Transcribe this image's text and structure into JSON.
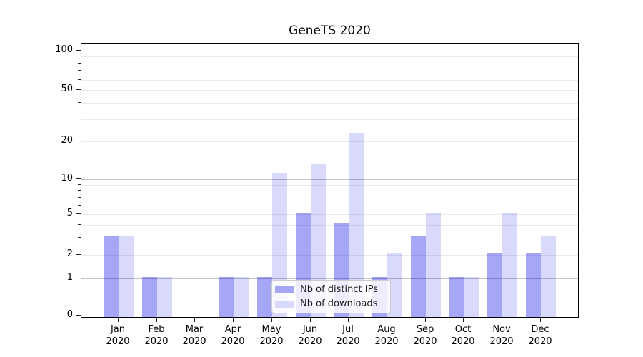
{
  "chart_data": {
    "type": "bar",
    "title": "GeneTS 2020",
    "categories": [
      "Jan",
      "Feb",
      "Mar",
      "Apr",
      "May",
      "Jun",
      "Jul",
      "Aug",
      "Sep",
      "Oct",
      "Nov",
      "Dec"
    ],
    "x_tick_line2": "2020",
    "series": [
      {
        "name": "Nb of distinct IPs",
        "color": "rgba(0,0,230,0.35)",
        "legend_color": "#a6a6f6",
        "values": [
          3,
          1,
          0,
          1,
          1,
          5,
          4,
          1,
          3,
          1,
          2,
          2
        ]
      },
      {
        "name": "Nb of downloads",
        "color": "rgba(0,0,230,0.15)",
        "legend_color": "#d9d9fb",
        "values": [
          3,
          1,
          0,
          1,
          11,
          13,
          23,
          2,
          5,
          1,
          5,
          3
        ]
      }
    ],
    "y_axis": {
      "scale": "log1p",
      "ticks": [
        0,
        1,
        2,
        5,
        10,
        20,
        50,
        100
      ],
      "major_gridlines": [
        1,
        10,
        100
      ],
      "minor_gridlines": [
        2,
        3,
        4,
        5,
        6,
        7,
        8,
        9,
        20,
        30,
        40,
        50,
        60,
        70,
        80,
        90
      ],
      "ylim_max": 117
    },
    "grid": {
      "major_color": "#c3c3c3",
      "minor_color": "#ebebeb"
    },
    "legend": {
      "position": "lower-center"
    }
  }
}
